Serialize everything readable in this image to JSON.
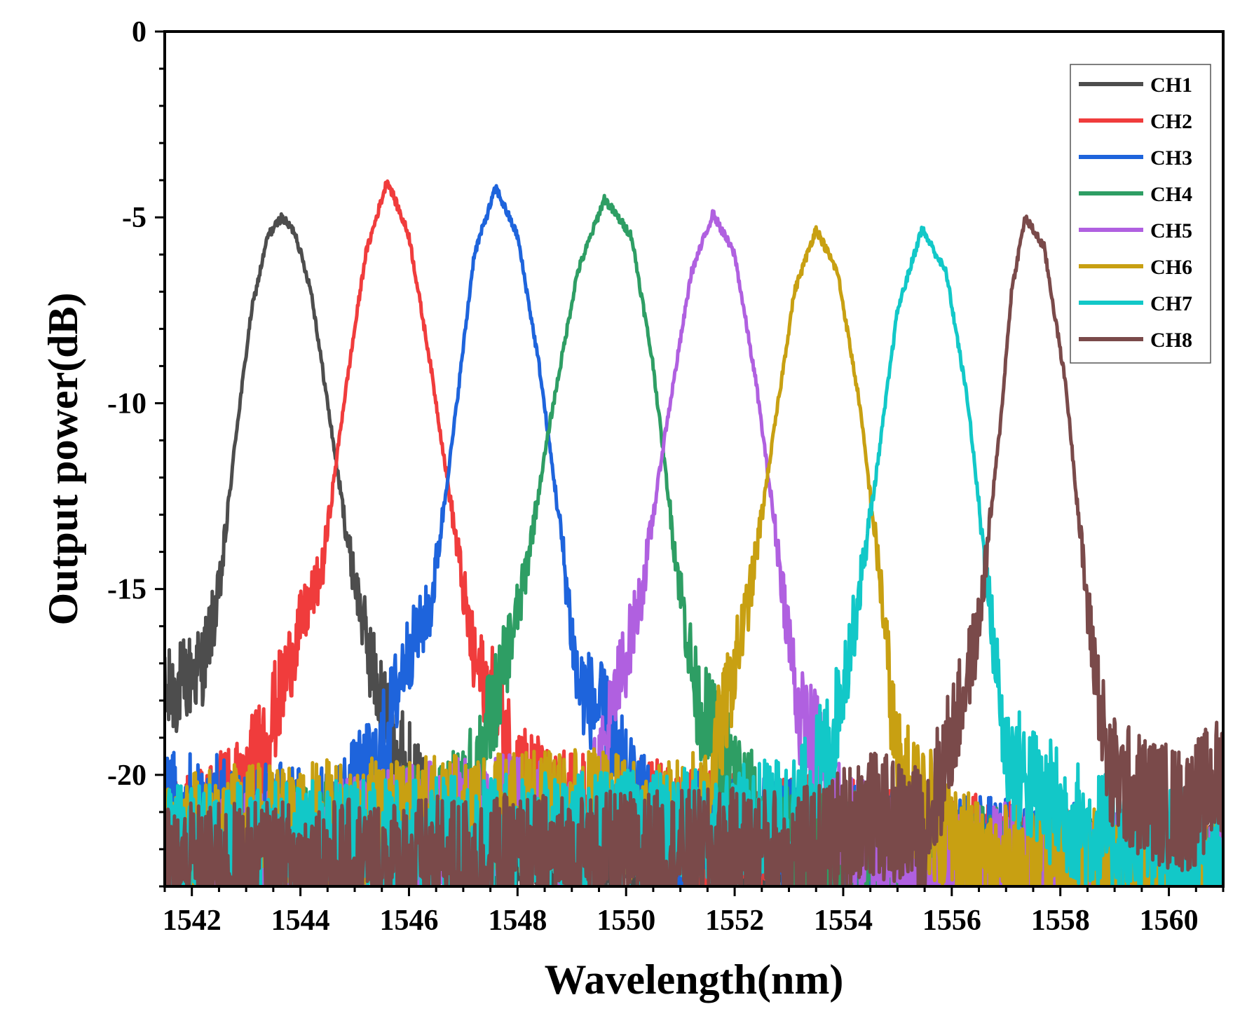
{
  "chart_data": {
    "type": "line",
    "title": "",
    "xlabel": "Wavelength(nm)",
    "ylabel": "Output power(dB)",
    "xlim": [
      1541.5,
      1561.0
    ],
    "ylim": [
      -23.0,
      0.0
    ],
    "xticks": [
      1542,
      1544,
      1546,
      1548,
      1550,
      1552,
      1554,
      1556,
      1558,
      1560
    ],
    "yticks": [
      0,
      -5,
      -10,
      -15,
      -20
    ],
    "xtick_labels": [
      "1542",
      "1544",
      "1546",
      "1548",
      "1550",
      "1552",
      "1554",
      "1556",
      "1558",
      "1560"
    ],
    "ytick_labels": [
      "0",
      "-5",
      "-10",
      "-15",
      "-20"
    ],
    "legend_position": "top-right",
    "grid": false,
    "series": [
      {
        "name": "CH1",
        "color": "#4d4d4d",
        "peak_wavelength": 1543.65,
        "peak_power": -5.0,
        "width_3db": 1.5,
        "profile": [
          {
            "x": 1541.5,
            "y": -18.0
          },
          {
            "x": 1542.2,
            "y": -17.0
          },
          {
            "x": 1542.5,
            "y": -15.2
          },
          {
            "x": 1542.8,
            "y": -11.0
          },
          {
            "x": 1543.1,
            "y": -7.5
          },
          {
            "x": 1543.4,
            "y": -5.5
          },
          {
            "x": 1543.65,
            "y": -5.0
          },
          {
            "x": 1543.9,
            "y": -5.4
          },
          {
            "x": 1544.2,
            "y": -7.0
          },
          {
            "x": 1544.5,
            "y": -10.0
          },
          {
            "x": 1544.9,
            "y": -14.0
          },
          {
            "x": 1545.3,
            "y": -17.0
          },
          {
            "x": 1545.7,
            "y": -19.0
          },
          {
            "x": 1546.2,
            "y": -21.0
          },
          {
            "x": 1547.5,
            "y": -22.5
          },
          {
            "x": 1561.0,
            "y": -22.8
          }
        ]
      },
      {
        "name": "CH2",
        "color": "#f03c3c",
        "peak_wavelength": 1545.6,
        "peak_power": -4.0,
        "width_3db": 1.5,
        "profile": [
          {
            "x": 1541.5,
            "y": -22.0
          },
          {
            "x": 1543.0,
            "y": -20.5
          },
          {
            "x": 1543.6,
            "y": -18.0
          },
          {
            "x": 1544.0,
            "y": -16.0
          },
          {
            "x": 1544.4,
            "y": -14.5
          },
          {
            "x": 1544.8,
            "y": -10.0
          },
          {
            "x": 1545.2,
            "y": -6.0
          },
          {
            "x": 1545.6,
            "y": -4.0
          },
          {
            "x": 1546.0,
            "y": -5.5
          },
          {
            "x": 1546.4,
            "y": -9.0
          },
          {
            "x": 1546.8,
            "y": -13.0
          },
          {
            "x": 1547.2,
            "y": -17.0
          },
          {
            "x": 1547.6,
            "y": -18.0
          },
          {
            "x": 1548.0,
            "y": -20.0
          },
          {
            "x": 1548.6,
            "y": -21.0
          },
          {
            "x": 1561.0,
            "y": -22.8
          }
        ]
      },
      {
        "name": "CH3",
        "color": "#1e64dc",
        "peak_wavelength": 1547.6,
        "peak_power": -4.2,
        "width_3db": 1.5,
        "profile": [
          {
            "x": 1541.5,
            "y": -21.0
          },
          {
            "x": 1544.5,
            "y": -21.5
          },
          {
            "x": 1545.4,
            "y": -20.0
          },
          {
            "x": 1545.9,
            "y": -17.0
          },
          {
            "x": 1546.4,
            "y": -15.5
          },
          {
            "x": 1546.8,
            "y": -11.0
          },
          {
            "x": 1547.2,
            "y": -6.0
          },
          {
            "x": 1547.6,
            "y": -4.2
          },
          {
            "x": 1548.0,
            "y": -5.5
          },
          {
            "x": 1548.4,
            "y": -9.0
          },
          {
            "x": 1548.8,
            "y": -13.5
          },
          {
            "x": 1549.1,
            "y": -17.5
          },
          {
            "x": 1549.6,
            "y": -18.5
          },
          {
            "x": 1550.0,
            "y": -20.5
          },
          {
            "x": 1550.5,
            "y": -21.5
          },
          {
            "x": 1561.0,
            "y": -22.8
          }
        ]
      },
      {
        "name": "CH4",
        "color": "#2e9e64",
        "peak_wavelength": 1549.6,
        "peak_power": -4.5,
        "width_3db": 1.5,
        "profile": [
          {
            "x": 1541.5,
            "y": -22.5
          },
          {
            "x": 1546.0,
            "y": -21.5
          },
          {
            "x": 1547.0,
            "y": -21.0
          },
          {
            "x": 1547.6,
            "y": -18.0
          },
          {
            "x": 1548.1,
            "y": -15.0
          },
          {
            "x": 1548.6,
            "y": -10.5
          },
          {
            "x": 1549.1,
            "y": -6.5
          },
          {
            "x": 1549.6,
            "y": -4.5
          },
          {
            "x": 1550.1,
            "y": -5.5
          },
          {
            "x": 1550.5,
            "y": -9.0
          },
          {
            "x": 1550.9,
            "y": -14.0
          },
          {
            "x": 1551.3,
            "y": -18.0
          },
          {
            "x": 1551.8,
            "y": -19.5
          },
          {
            "x": 1552.3,
            "y": -21.0
          },
          {
            "x": 1553.0,
            "y": -22.0
          },
          {
            "x": 1561.0,
            "y": -22.8
          }
        ]
      },
      {
        "name": "CH5",
        "color": "#b060e0",
        "peak_wavelength": 1551.6,
        "peak_power": -4.9,
        "width_3db": 1.5,
        "profile": [
          {
            "x": 1541.5,
            "y": -22.5
          },
          {
            "x": 1548.0,
            "y": -21.0
          },
          {
            "x": 1549.3,
            "y": -21.5
          },
          {
            "x": 1549.8,
            "y": -18.0
          },
          {
            "x": 1550.3,
            "y": -15.0
          },
          {
            "x": 1550.7,
            "y": -11.0
          },
          {
            "x": 1551.2,
            "y": -6.5
          },
          {
            "x": 1551.6,
            "y": -4.9
          },
          {
            "x": 1552.0,
            "y": -6.0
          },
          {
            "x": 1552.4,
            "y": -9.5
          },
          {
            "x": 1552.8,
            "y": -14.0
          },
          {
            "x": 1553.2,
            "y": -18.5
          },
          {
            "x": 1553.6,
            "y": -19.5
          },
          {
            "x": 1554.0,
            "y": -21.5
          },
          {
            "x": 1555.0,
            "y": -22.3
          },
          {
            "x": 1561.0,
            "y": -22.8
          }
        ]
      },
      {
        "name": "CH6",
        "color": "#c8a012",
        "peak_wavelength": 1553.5,
        "peak_power": -5.3,
        "width_3db": 1.5,
        "profile": [
          {
            "x": 1541.5,
            "y": -21.5
          },
          {
            "x": 1549.5,
            "y": -21.0
          },
          {
            "x": 1550.5,
            "y": -21.5
          },
          {
            "x": 1551.4,
            "y": -21.0
          },
          {
            "x": 1551.8,
            "y": -18.5
          },
          {
            "x": 1552.3,
            "y": -15.0
          },
          {
            "x": 1552.7,
            "y": -11.0
          },
          {
            "x": 1553.1,
            "y": -7.0
          },
          {
            "x": 1553.5,
            "y": -5.3
          },
          {
            "x": 1553.9,
            "y": -6.5
          },
          {
            "x": 1554.3,
            "y": -10.0
          },
          {
            "x": 1554.7,
            "y": -15.0
          },
          {
            "x": 1555.0,
            "y": -20.0
          },
          {
            "x": 1555.6,
            "y": -21.0
          },
          {
            "x": 1556.5,
            "y": -22.5
          },
          {
            "x": 1561.0,
            "y": -22.8
          }
        ]
      },
      {
        "name": "CH7",
        "color": "#12c8c8",
        "peak_wavelength": 1555.45,
        "peak_power": -5.3,
        "width_3db": 1.5,
        "profile": [
          {
            "x": 1541.5,
            "y": -22.0
          },
          {
            "x": 1552.0,
            "y": -21.5
          },
          {
            "x": 1553.2,
            "y": -21.0
          },
          {
            "x": 1553.8,
            "y": -19.0
          },
          {
            "x": 1554.2,
            "y": -16.0
          },
          {
            "x": 1554.6,
            "y": -12.0
          },
          {
            "x": 1555.0,
            "y": -7.5
          },
          {
            "x": 1555.45,
            "y": -5.3
          },
          {
            "x": 1555.9,
            "y": -6.5
          },
          {
            "x": 1556.3,
            "y": -10.0
          },
          {
            "x": 1556.7,
            "y": -15.5
          },
          {
            "x": 1557.0,
            "y": -19.5
          },
          {
            "x": 1557.6,
            "y": -20.5
          },
          {
            "x": 1558.5,
            "y": -21.5
          },
          {
            "x": 1560.0,
            "y": -22.0
          },
          {
            "x": 1561.0,
            "y": -22.3
          }
        ]
      },
      {
        "name": "CH8",
        "color": "#7a4a4a",
        "peak_wavelength": 1557.35,
        "peak_power": -5.0,
        "width_3db": 1.5,
        "profile": [
          {
            "x": 1541.5,
            "y": -22.5
          },
          {
            "x": 1553.5,
            "y": -22.0
          },
          {
            "x": 1554.4,
            "y": -21.0
          },
          {
            "x": 1555.5,
            "y": -21.5
          },
          {
            "x": 1556.1,
            "y": -18.5
          },
          {
            "x": 1556.5,
            "y": -16.0
          },
          {
            "x": 1556.9,
            "y": -10.5
          },
          {
            "x": 1557.1,
            "y": -7.0
          },
          {
            "x": 1557.35,
            "y": -5.0
          },
          {
            "x": 1557.7,
            "y": -5.8
          },
          {
            "x": 1558.1,
            "y": -9.5
          },
          {
            "x": 1558.5,
            "y": -15.5
          },
          {
            "x": 1558.9,
            "y": -20.0
          },
          {
            "x": 1559.4,
            "y": -20.5
          },
          {
            "x": 1560.3,
            "y": -21.0
          },
          {
            "x": 1561.0,
            "y": -20.0
          }
        ]
      }
    ]
  }
}
